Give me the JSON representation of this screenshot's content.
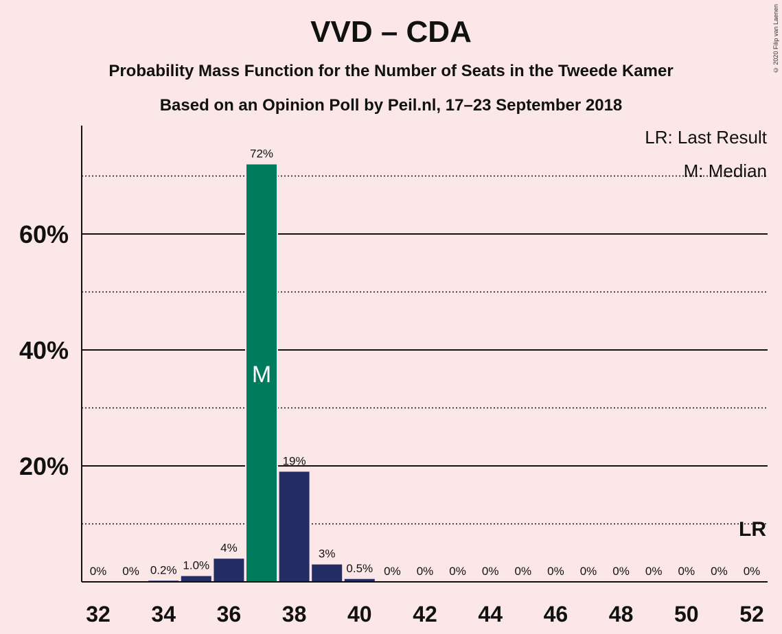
{
  "copyright": "© 2020 Filip van Laenen",
  "colors": {
    "background": "#fbe6e8",
    "median_bar": "#007b5e",
    "other_bar": "#262d64",
    "text": "#111111"
  },
  "chart_data": {
    "type": "bar",
    "title": "VVD – CDA",
    "subtitle": "Probability Mass Function for the Number of Seats in the Tweede Kamer",
    "subtitle2": "Based on an Opinion Poll by Peil.nl, 17–23 September 2018",
    "xlabel": "",
    "ylabel": "",
    "ylim": [
      0,
      78
    ],
    "y_ticks": [
      20,
      40,
      60
    ],
    "y_tick_labels": [
      "20%",
      "40%",
      "60%"
    ],
    "y_minor_gridlines": [
      10,
      30,
      50,
      70
    ],
    "x_ticks": [
      32,
      34,
      36,
      38,
      40,
      42,
      44,
      46,
      48,
      50,
      52
    ],
    "seats": [
      32,
      33,
      34,
      35,
      36,
      37,
      38,
      39,
      40,
      41,
      42,
      43,
      44,
      45,
      46,
      47,
      48,
      49,
      50,
      51,
      52
    ],
    "values": [
      0,
      0,
      0.2,
      1.0,
      4,
      72,
      19,
      3,
      0.5,
      0,
      0,
      0,
      0,
      0,
      0,
      0,
      0,
      0,
      0,
      0,
      0
    ],
    "value_labels": [
      "0%",
      "0%",
      "0.2%",
      "1.0%",
      "4%",
      "72%",
      "19%",
      "3%",
      "0.5%",
      "0%",
      "0%",
      "0%",
      "0%",
      "0%",
      "0%",
      "0%",
      "0%",
      "0%",
      "0%",
      "0%",
      "0%"
    ],
    "median_seat": 37,
    "median_marker": "M",
    "last_result_seat": 52,
    "last_result_marker": "LR",
    "legend": {
      "position": "top-right",
      "entries": [
        "LR: Last Result",
        "M: Median"
      ]
    },
    "grid": true
  }
}
